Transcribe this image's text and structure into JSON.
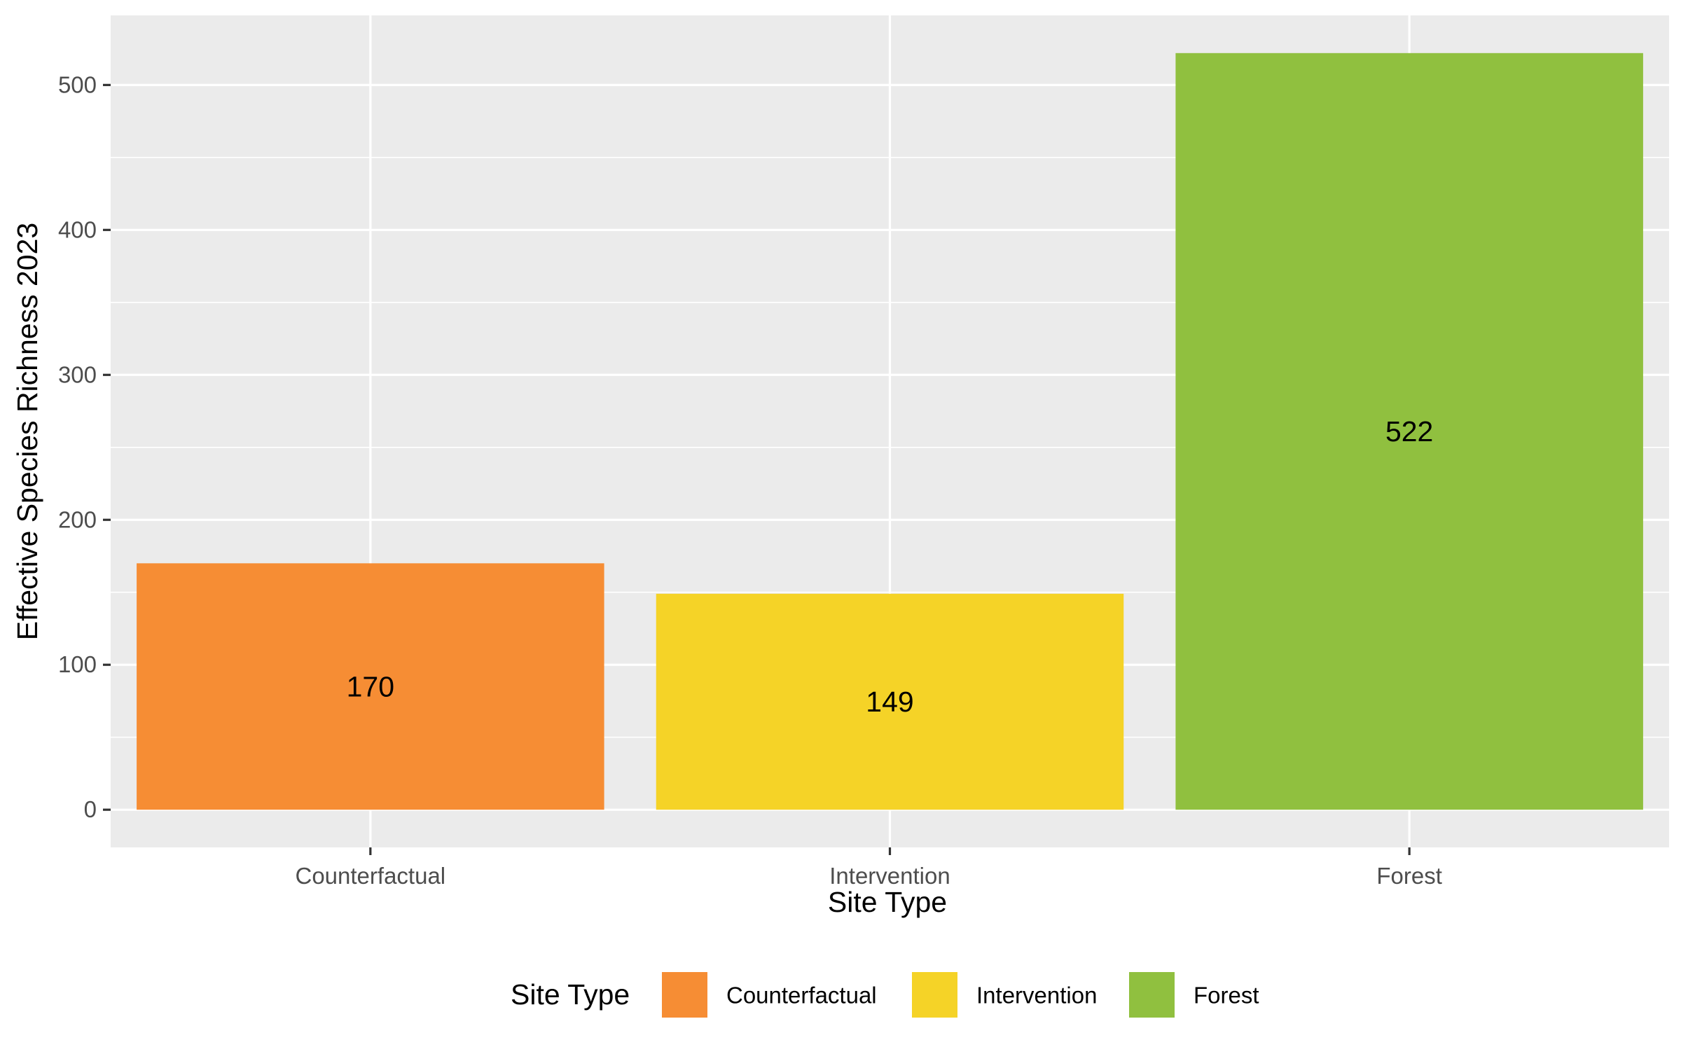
{
  "chart_data": {
    "type": "bar",
    "title": "",
    "xlabel": "Site Type",
    "ylabel": "Effective Species Richness 2023",
    "categories": [
      "Counterfactual",
      "Intervention",
      "Forest"
    ],
    "values": [
      170,
      149,
      522
    ],
    "data_labels": [
      "170",
      "149",
      "522"
    ],
    "colors": [
      "#F68D34",
      "#F5D327",
      "#90C03F"
    ],
    "ylim": [
      -26,
      548
    ],
    "yticks": [
      0,
      100,
      200,
      300,
      400,
      500
    ],
    "ytick_labels": [
      "0",
      "100",
      "200",
      "300",
      "400",
      "500"
    ],
    "yminor": [
      50,
      150,
      250,
      350,
      450
    ],
    "grid": true,
    "panel_background": "#EBEBEB",
    "legend": {
      "title": "Site Type",
      "position": "bottom",
      "entries": [
        "Counterfactual",
        "Intervention",
        "Forest"
      ]
    }
  }
}
